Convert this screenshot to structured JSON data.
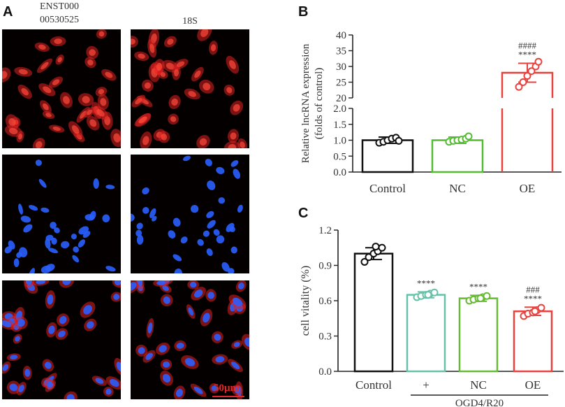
{
  "panels": {
    "a": "A",
    "b": "B",
    "c": "C"
  },
  "microscopy": {
    "col1_line1": "ENST000",
    "col1_line2": "00530525",
    "col2": "18S",
    "scale_bar": "50μm",
    "colors": {
      "red_stain": "#e02020",
      "blue_stain": "#2a5fff",
      "background": "#050000"
    },
    "rows": [
      "red",
      "blue",
      "merge"
    ]
  },
  "chart_data": [
    {
      "type": "bar",
      "panel": "B",
      "categories": [
        "Control",
        "NC",
        "OE"
      ],
      "values": [
        1.0,
        1.0,
        28.0
      ],
      "errors": [
        0.1,
        0.1,
        3.0
      ],
      "points": [
        [
          0.92,
          0.95,
          1.0,
          1.05,
          1.08,
          0.98
        ],
        [
          0.95,
          0.98,
          1.0,
          1.02,
          1.05,
          1.12
        ],
        [
          23.5,
          25.0,
          27.0,
          28.5,
          30.0,
          31.5
        ]
      ],
      "colors": [
        "#111111",
        "#55bb33",
        "#e8423f"
      ],
      "ylabel_line1": "Relative lncRNA expression",
      "ylabel_line2": "(folds of control)",
      "axis_break": true,
      "lower_ylim": [
        0,
        2.0
      ],
      "lower_ticks": [
        "0.0",
        "0.5",
        "1.0",
        "1.5",
        "2.0"
      ],
      "upper_ylim": [
        20,
        40
      ],
      "upper_ticks": [
        "20",
        "25",
        "30",
        "35",
        "40"
      ],
      "annotations": [
        {
          "category": "OE",
          "lines": [
            "####",
            "****"
          ]
        }
      ]
    },
    {
      "type": "bar",
      "panel": "C",
      "categories": [
        "Control",
        "+",
        "NC",
        "OE"
      ],
      "values": [
        1.0,
        0.65,
        0.62,
        0.51
      ],
      "errors": [
        0.05,
        0.025,
        0.025,
        0.035
      ],
      "points": [
        [
          0.93,
          0.97,
          1.0,
          1.02,
          1.05,
          1.06
        ],
        [
          0.63,
          0.64,
          0.65,
          0.66,
          0.67,
          0.65
        ],
        [
          0.6,
          0.61,
          0.62,
          0.63,
          0.64,
          0.62
        ],
        [
          0.47,
          0.49,
          0.5,
          0.52,
          0.54,
          0.51
        ]
      ],
      "colors": [
        "#111111",
        "#66c1a8",
        "#66bb33",
        "#e8423f"
      ],
      "ylabel": "cell vitality (%)",
      "ylim": [
        0,
        1.2
      ],
      "ticks": [
        "0.0",
        "0.3",
        "0.6",
        "0.9",
        "1.2"
      ],
      "group_label": "OGD4/R20",
      "annotations": [
        {
          "category": "+",
          "lines": [
            "****"
          ]
        },
        {
          "category": "NC",
          "lines": [
            "****"
          ]
        },
        {
          "category": "OE",
          "lines": [
            "###",
            "****"
          ]
        }
      ]
    }
  ]
}
